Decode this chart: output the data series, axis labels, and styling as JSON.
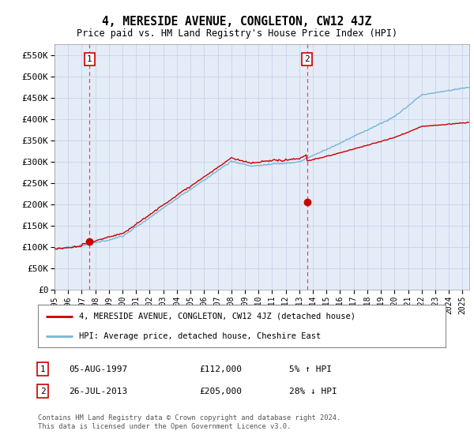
{
  "title": "4, MERESIDE AVENUE, CONGLETON, CW12 4JZ",
  "subtitle": "Price paid vs. HM Land Registry's House Price Index (HPI)",
  "ylabel_ticks": [
    "£0",
    "£50K",
    "£100K",
    "£150K",
    "£200K",
    "£250K",
    "£300K",
    "£350K",
    "£400K",
    "£450K",
    "£500K",
    "£550K"
  ],
  "ylim": [
    0,
    575000
  ],
  "ytick_values": [
    0,
    50000,
    100000,
    150000,
    200000,
    250000,
    300000,
    350000,
    400000,
    450000,
    500000,
    550000
  ],
  "sale1_x": 1997.58,
  "sale1_y": 112000,
  "sale1_label": "1",
  "sale1_date": "05-AUG-1997",
  "sale1_price": "£112,000",
  "sale1_hpi": "5% ↑ HPI",
  "sale2_x": 2013.57,
  "sale2_y": 205000,
  "sale2_label": "2",
  "sale2_date": "26-JUL-2013",
  "sale2_price": "£205,000",
  "sale2_hpi": "28% ↓ HPI",
  "legend_line1": "4, MERESIDE AVENUE, CONGLETON, CW12 4JZ (detached house)",
  "legend_line2": "HPI: Average price, detached house, Cheshire East",
  "footer": "Contains HM Land Registry data © Crown copyright and database right 2024.\nThis data is licensed under the Open Government Licence v3.0.",
  "hpi_color": "#7ab4d8",
  "price_color": "#cc0000",
  "dot_color": "#cc0000",
  "grid_color": "#c8d4e8",
  "bg_color": "#e4ecf8",
  "sale_vline_color": "#e05050",
  "xlim_start": 1995.0,
  "xlim_end": 2025.5,
  "xtick_years": [
    1995,
    1996,
    1997,
    1998,
    1999,
    2000,
    2001,
    2002,
    2003,
    2004,
    2005,
    2006,
    2007,
    2008,
    2009,
    2010,
    2011,
    2012,
    2013,
    2014,
    2015,
    2016,
    2017,
    2018,
    2019,
    2020,
    2021,
    2022,
    2023,
    2024,
    2025
  ]
}
